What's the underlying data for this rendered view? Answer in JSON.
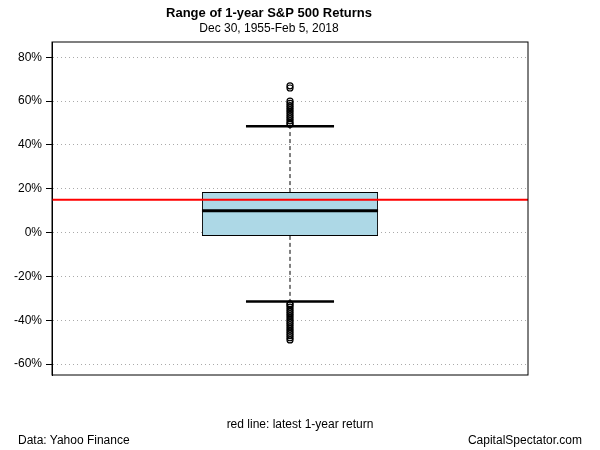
{
  "chart_data": {
    "type": "box",
    "title": "Range of 1-year S&P 500 Returns",
    "subtitle": "Dec 30, 1955-Feb 5, 2018",
    "box": {
      "whisker_low": -31.5,
      "q1": -1.5,
      "median": 10,
      "q3": 18.5,
      "whisker_high": 48.5,
      "outliers": [
        49.5,
        50,
        51,
        52,
        53,
        54,
        55,
        56,
        57,
        58,
        59,
        60,
        66,
        67,
        -32.5,
        -33,
        -34,
        -35,
        -36,
        -37,
        -38,
        -39,
        -40,
        -41,
        -42,
        -43,
        -44,
        -45,
        -46,
        -47,
        -48,
        -49
      ]
    },
    "color": "#add8e6",
    "reference_line": {
      "value": 15,
      "color": "#ff0000",
      "label": "red line: latest 1-year return"
    },
    "ylim": [
      -65,
      87
    ],
    "yticks": [
      {
        "value": -60,
        "label": "-60%"
      },
      {
        "value": -40,
        "label": "-40%"
      },
      {
        "value": -20,
        "label": "-20%"
      },
      {
        "value": 0,
        "label": "0%"
      },
      {
        "value": 20,
        "label": "20%"
      },
      {
        "value": 40,
        "label": "40%"
      },
      {
        "value": 60,
        "label": "60%"
      },
      {
        "value": 80,
        "label": "80%"
      }
    ],
    "grid": true,
    "tick_labels": "y",
    "source": "Data: Yahoo Finance",
    "credit": "CapitalSpectator.com"
  }
}
